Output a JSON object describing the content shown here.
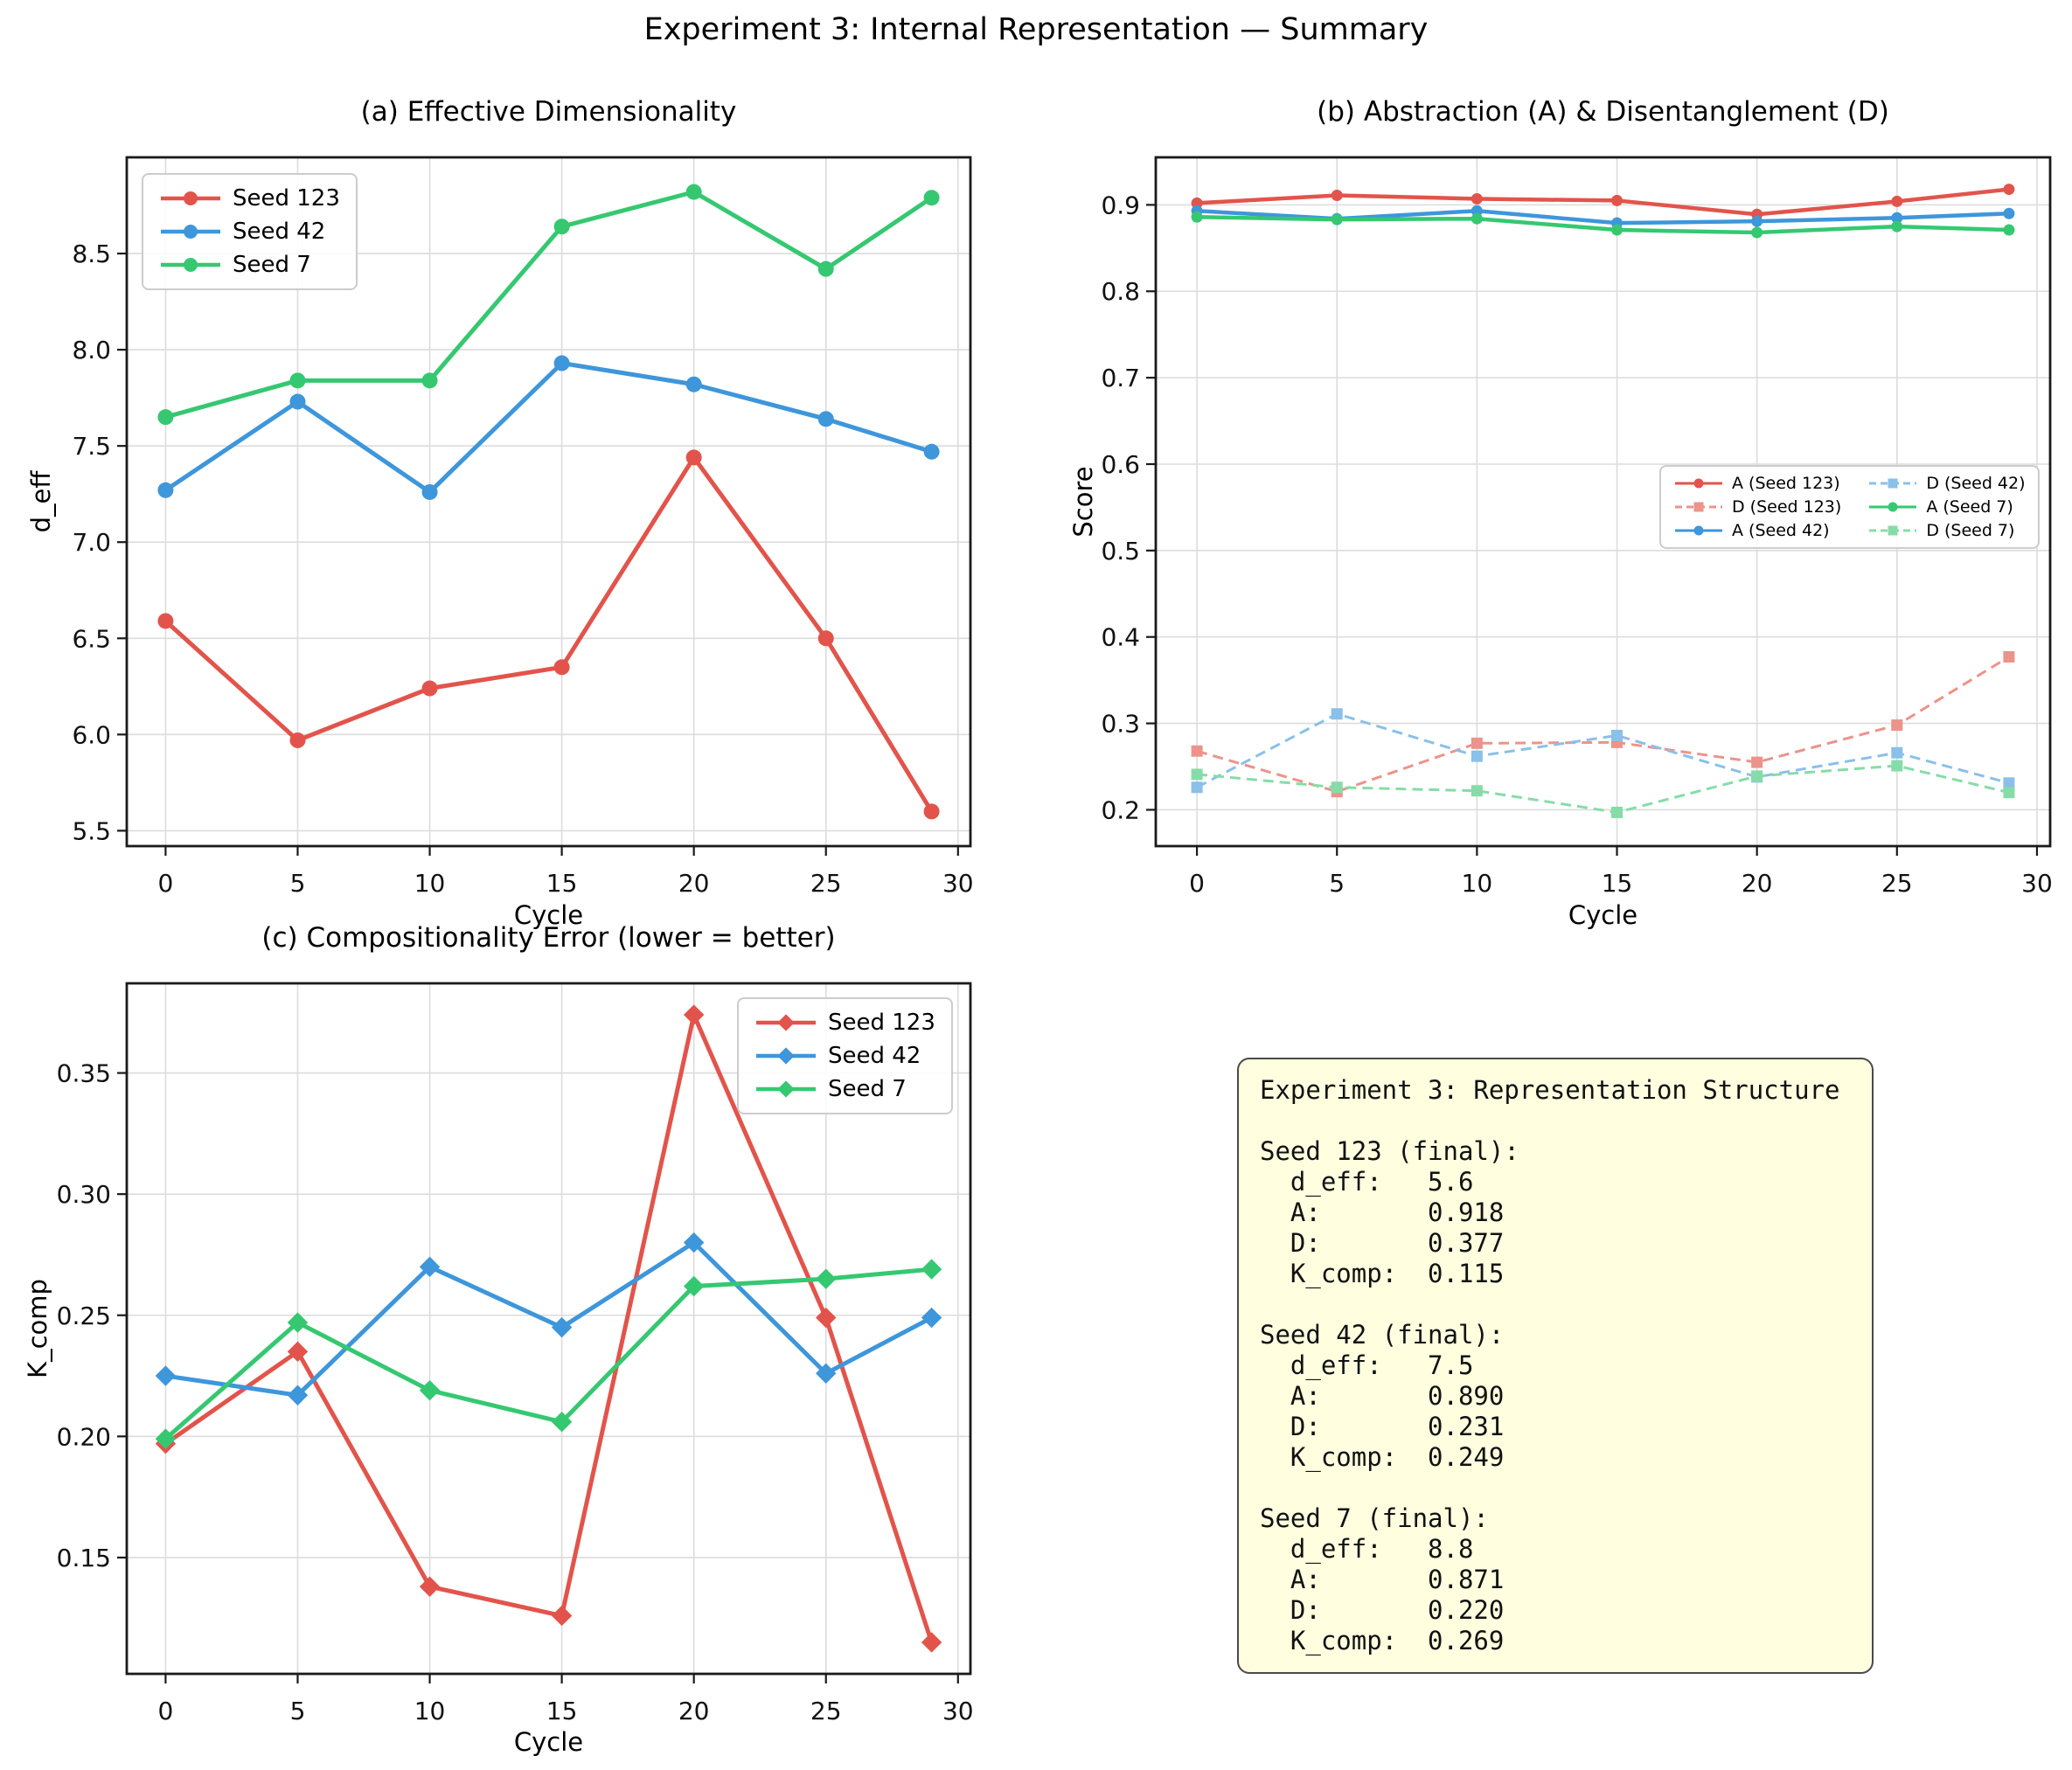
{
  "suptitle": "Experiment 3: Internal Representation — Summary",
  "colors": {
    "red": "#e2544b",
    "blue": "#3e96db",
    "green": "#35c871",
    "red_light": "#ec938b",
    "blue_light": "#8ac0ea",
    "green_light": "#86dca8",
    "grid": "#dcdcdc",
    "spine": "#1a1a1a",
    "textbox_bg": "#ffffe0"
  },
  "chart_data": [
    {
      "type": "line",
      "title": "(a) Effective Dimensionality",
      "xlabel": "Cycle",
      "ylabel": "d_eff",
      "x": [
        0,
        5,
        10,
        15,
        20,
        25,
        29
      ],
      "xlim": [
        -1.47,
        30.47
      ],
      "ylim": [
        5.42,
        9.0
      ],
      "xticks": [
        0,
        5,
        10,
        15,
        20,
        25,
        30
      ],
      "xtick_labels": [
        "0",
        "5",
        "10",
        "15",
        "20",
        "25",
        "30"
      ],
      "yticks": [
        5.5,
        6.0,
        6.5,
        7.0,
        7.5,
        8.0,
        8.5
      ],
      "ytick_labels": [
        "5.5",
        "6.0",
        "6.5",
        "7.0",
        "7.5",
        "8.0",
        "8.5"
      ],
      "grid": true,
      "legend_loc": "upper-left",
      "series": [
        {
          "name": "Seed 123",
          "color": "#e2544b",
          "dash": false,
          "marker": "circle",
          "values": [
            6.59,
            5.97,
            6.24,
            6.35,
            7.44,
            6.5,
            5.6
          ]
        },
        {
          "name": "Seed 42",
          "color": "#3e96db",
          "dash": false,
          "marker": "circle",
          "values": [
            7.27,
            7.73,
            7.26,
            7.93,
            7.82,
            7.64,
            7.47
          ]
        },
        {
          "name": "Seed 7",
          "color": "#35c871",
          "dash": false,
          "marker": "circle",
          "values": [
            7.65,
            7.84,
            7.84,
            8.64,
            8.82,
            8.42,
            8.79
          ]
        }
      ]
    },
    {
      "type": "line",
      "title": "(b) Abstraction (A) & Disentanglement (D)",
      "xlabel": "Cycle",
      "ylabel": "Score",
      "x": [
        0,
        5,
        10,
        15,
        20,
        25,
        29
      ],
      "xlim": [
        -1.47,
        30.47
      ],
      "ylim": [
        0.158,
        0.955
      ],
      "xticks": [
        0,
        5,
        10,
        15,
        20,
        25,
        30
      ],
      "xtick_labels": [
        "0",
        "5",
        "10",
        "15",
        "20",
        "25",
        "30"
      ],
      "yticks": [
        0.2,
        0.3,
        0.4,
        0.5,
        0.6,
        0.7,
        0.8,
        0.9
      ],
      "ytick_labels": [
        "0.2",
        "0.3",
        "0.4",
        "0.5",
        "0.6",
        "0.7",
        "0.8",
        "0.9"
      ],
      "grid": true,
      "legend_loc": "center-right",
      "legend_columns": 2,
      "series": [
        {
          "name": "A (Seed 123)",
          "color": "#e2544b",
          "dash": false,
          "marker": "circle",
          "values": [
            0.902,
            0.911,
            0.907,
            0.905,
            0.889,
            0.904,
            0.918
          ]
        },
        {
          "name": "D (Seed 123)",
          "color": "#ec938b",
          "dash": true,
          "marker": "square",
          "values": [
            0.268,
            0.221,
            0.277,
            0.278,
            0.255,
            0.298,
            0.377
          ]
        },
        {
          "name": "A (Seed 42)",
          "color": "#3e96db",
          "dash": false,
          "marker": "circle",
          "values": [
            0.893,
            0.884,
            0.893,
            0.879,
            0.881,
            0.885,
            0.89
          ]
        },
        {
          "name": "D (Seed 42)",
          "color": "#8ac0ea",
          "dash": true,
          "marker": "square",
          "values": [
            0.226,
            0.311,
            0.262,
            0.286,
            0.238,
            0.266,
            0.231
          ]
        },
        {
          "name": "A (Seed 7)",
          "color": "#35c871",
          "dash": false,
          "marker": "circle",
          "values": [
            0.886,
            0.883,
            0.884,
            0.871,
            0.868,
            0.875,
            0.871
          ]
        },
        {
          "name": "D (Seed 7)",
          "color": "#86dca8",
          "dash": true,
          "marker": "square",
          "values": [
            0.241,
            0.226,
            0.222,
            0.197,
            0.239,
            0.251,
            0.22
          ]
        }
      ]
    },
    {
      "type": "line",
      "title": "(c) Compositionality Error (lower = better)",
      "xlabel": "Cycle",
      "ylabel": "K_comp",
      "x": [
        0,
        5,
        10,
        15,
        20,
        25,
        29
      ],
      "xlim": [
        -1.47,
        30.47
      ],
      "ylim": [
        0.102,
        0.387
      ],
      "xticks": [
        0,
        5,
        10,
        15,
        20,
        25,
        30
      ],
      "xtick_labels": [
        "0",
        "5",
        "10",
        "15",
        "20",
        "25",
        "30"
      ],
      "yticks": [
        0.15,
        0.2,
        0.25,
        0.3,
        0.35
      ],
      "ytick_labels": [
        "0.15",
        "0.20",
        "0.25",
        "0.30",
        "0.35"
      ],
      "grid": true,
      "legend_loc": "upper-right",
      "series": [
        {
          "name": "Seed 123",
          "color": "#e2544b",
          "dash": false,
          "marker": "diamond",
          "values": [
            0.197,
            0.235,
            0.138,
            0.126,
            0.374,
            0.249,
            0.115
          ]
        },
        {
          "name": "Seed 42",
          "color": "#3e96db",
          "dash": false,
          "marker": "diamond",
          "values": [
            0.225,
            0.217,
            0.27,
            0.245,
            0.28,
            0.226,
            0.249
          ]
        },
        {
          "name": "Seed 7",
          "color": "#35c871",
          "dash": false,
          "marker": "diamond",
          "values": [
            0.199,
            0.247,
            0.219,
            0.206,
            0.262,
            0.265,
            0.269
          ]
        }
      ]
    }
  ],
  "textbox": {
    "title": "Experiment 3: Representation Structure",
    "seeds": [
      {
        "name": "Seed 123",
        "d_eff": "5.6",
        "A": "0.918",
        "D": "0.377",
        "K_comp": "0.115"
      },
      {
        "name": "Seed 42",
        "d_eff": "7.5",
        "A": "0.890",
        "D": "0.231",
        "K_comp": "0.249"
      },
      {
        "name": "Seed 7",
        "d_eff": "8.8",
        "A": "0.871",
        "D": "0.220",
        "K_comp": "0.269"
      }
    ],
    "text": "Experiment 3: Representation Structure\n\nSeed 123 (final):\n  d_eff:   5.6\n  A:       0.918\n  D:       0.377\n  K_comp:  0.115\n\nSeed 42 (final):\n  d_eff:   7.5\n  A:       0.890\n  D:       0.231\n  K_comp:  0.249\n\nSeed 7 (final):\n  d_eff:   8.8\n  A:       0.871\n  D:       0.220\n  K_comp:  0.269"
  }
}
